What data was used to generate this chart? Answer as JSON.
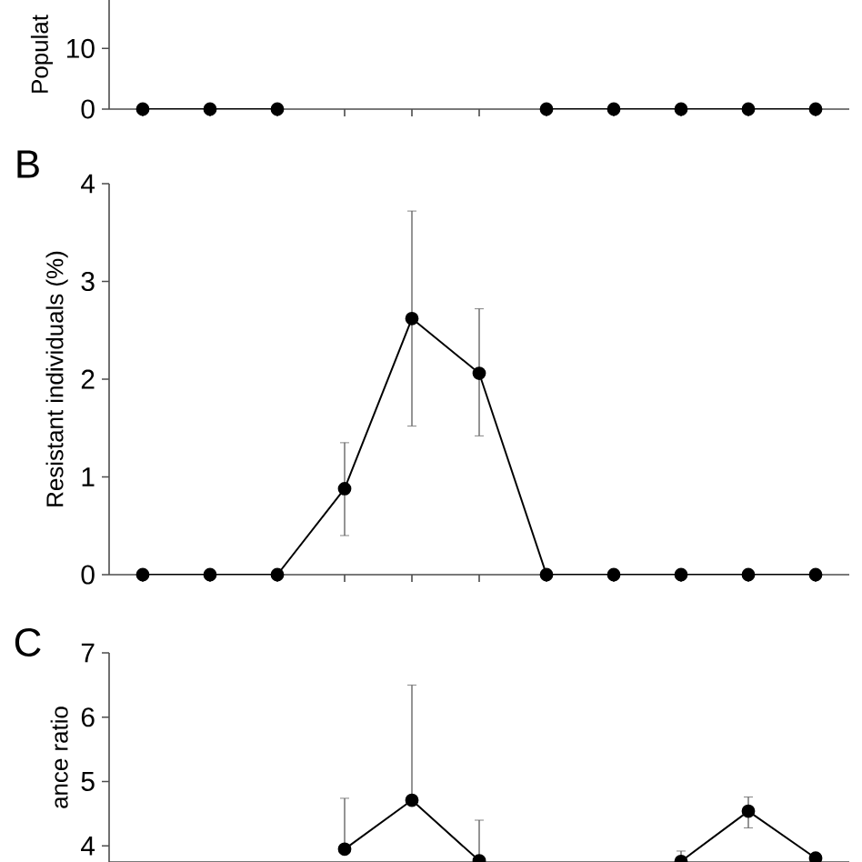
{
  "chart_data": [
    {
      "type": "line",
      "ylabel": "Populat",
      "categories": [
        null,
        null,
        null,
        null,
        null,
        null,
        null,
        null,
        null,
        null,
        null
      ],
      "series": [
        {
          "color": "#000000",
          "values": [
            0,
            0,
            0,
            null,
            null,
            null,
            0,
            0,
            0,
            0,
            0
          ]
        }
      ],
      "ylim": [
        0,
        18
      ],
      "yticks": [
        0,
        10
      ],
      "tick_labels": "y",
      "marker": "circle",
      "line_style": "solid",
      "grid": false
    },
    {
      "type": "line",
      "title": "B",
      "ylabel": "Resistant individuals (%)",
      "categories": [
        null,
        null,
        null,
        null,
        null,
        null,
        null,
        null,
        null,
        null,
        null
      ],
      "series": [
        {
          "color": "#000000",
          "values": [
            0,
            0,
            0,
            0.88,
            2.62,
            2.06,
            0,
            0,
            0,
            0,
            0
          ],
          "errors": [
            null,
            null,
            null,
            [
              0.4,
              1.35
            ],
            [
              1.52,
              3.72
            ],
            [
              1.42,
              2.72
            ],
            null,
            null,
            null,
            null,
            null
          ]
        }
      ],
      "ylim": [
        0,
        4
      ],
      "yticks": [
        0,
        1,
        2,
        3,
        4
      ],
      "tick_labels": "y",
      "marker": "circle",
      "line_style": "solid",
      "grid": false
    },
    {
      "type": "line",
      "title": "C",
      "ylabel": "ance ratio",
      "categories": [
        null,
        null,
        null,
        null,
        null,
        null,
        null,
        null,
        null,
        null,
        null
      ],
      "series": [
        {
          "color": "#000000",
          "values": [
            null,
            null,
            null,
            3.95,
            4.71,
            3.77,
            null,
            null,
            3.76,
            4.54,
            3.81
          ],
          "errors": [
            null,
            null,
            null,
            [
              3.95,
              4.74
            ],
            [
              4.71,
              6.5
            ],
            [
              3.77,
              4.4
            ],
            null,
            null,
            [
              3.76,
              3.92
            ],
            [
              4.28,
              4.76
            ],
            null
          ]
        }
      ],
      "ylim": [
        3.75,
        7
      ],
      "yticks": [
        4,
        5,
        6,
        7
      ],
      "tick_labels": "y",
      "marker": "circle",
      "line_style": "solid",
      "grid": false
    }
  ]
}
